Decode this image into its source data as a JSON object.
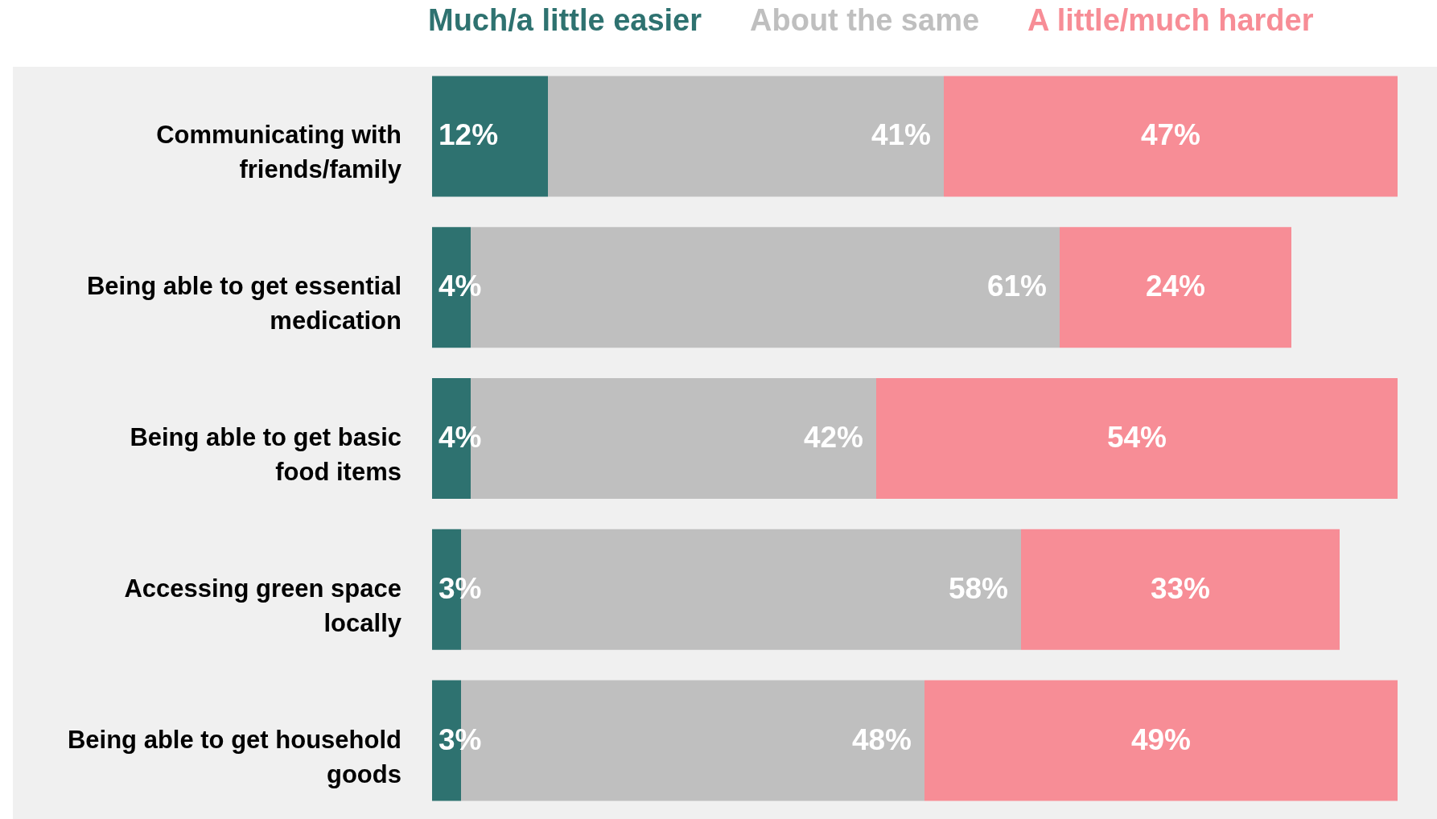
{
  "chart_data": {
    "type": "bar",
    "orientation": "horizontal",
    "legend": "top",
    "stacked": true,
    "categories": [
      "Communicating with friends/family",
      "Being able to get essential medication",
      "Being able to get basic food items",
      "Accessing green space locally",
      "Being able to get household goods"
    ],
    "series": [
      {
        "name": "Much/a little easier",
        "color": "#2e7270",
        "values": [
          12,
          4,
          4,
          3,
          3
        ],
        "value_labels": [
          "12%",
          "4%",
          "4%",
          "3%",
          "3%"
        ]
      },
      {
        "name": "About the same",
        "color": "#bfbfbf",
        "values": [
          41,
          61,
          42,
          58,
          48
        ],
        "value_labels": [
          "41%",
          "61%",
          "42%",
          "58%",
          "48%"
        ]
      },
      {
        "name": "A little/much harder",
        "color": "#f78d96",
        "values": [
          47,
          24,
          54,
          33,
          49
        ],
        "value_labels": [
          "47%",
          "24%",
          "54%",
          "33%",
          "49%"
        ]
      }
    ]
  }
}
